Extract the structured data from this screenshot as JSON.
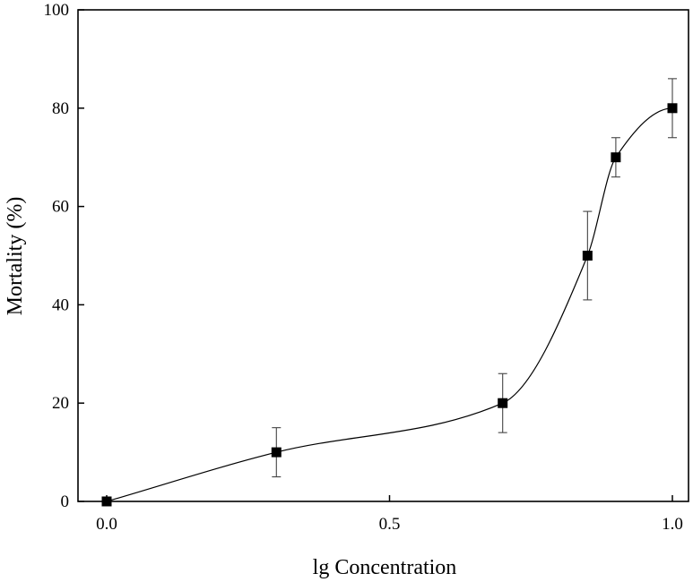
{
  "chart_data": {
    "type": "scatter",
    "title": "",
    "xlabel": "lg Concentration",
    "ylabel": "Mortality (%)",
    "xlim": [
      -0.05,
      1.03
    ],
    "ylim": [
      0,
      100
    ],
    "x_ticks": [
      0.0,
      0.5,
      1.0
    ],
    "x_tick_labels": [
      "0.0",
      "0.5",
      "1.0"
    ],
    "y_ticks": [
      0,
      20,
      40,
      60,
      80,
      100
    ],
    "y_tick_labels": [
      "0",
      "20",
      "40",
      "60",
      "80",
      "100"
    ],
    "grid": false,
    "legend": "none",
    "series": [
      {
        "marker": "square",
        "color": "#000000",
        "x": [
          0.0,
          0.3,
          0.7,
          0.85,
          0.9,
          1.0
        ],
        "y": [
          0,
          10,
          20,
          50,
          70,
          80
        ],
        "error": [
          0,
          5,
          6,
          9,
          4,
          6
        ]
      }
    ],
    "fit_curve": {
      "style": "smooth spline through points",
      "color": "#000000"
    }
  }
}
